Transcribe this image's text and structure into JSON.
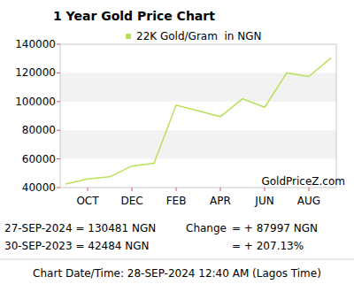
{
  "chart_data": {
    "type": "line",
    "title": "1 Year Gold Price Chart",
    "categories": [
      null,
      "OCT",
      null,
      "DEC",
      null,
      "FEB",
      null,
      "APR",
      null,
      "JUN",
      null,
      "AUG",
      null
    ],
    "series": [
      {
        "name": "22K Gold/Gram  in NGN",
        "color": "#b9e05a",
        "values": [
          42484,
          46000,
          47500,
          55000,
          57000,
          97500,
          93500,
          89500,
          102000,
          96000,
          120000,
          117500,
          130481
        ]
      }
    ],
    "ylim": [
      40000,
      140000
    ],
    "yticks": [
      40000,
      60000,
      80000,
      100000,
      120000,
      140000
    ],
    "grid": true,
    "legend": "top",
    "annotations": [
      "GoldPriceZ.com",
      "27-SEP-2024 = 130481 NGN",
      "30-SEP-2023 = 42484 NGN",
      "Change",
      "= + 87997 NGN",
      "= + 207.13%",
      "Chart Date/Time: 28-SEP-2024 12:40 AM (Lagos Time)"
    ]
  }
}
